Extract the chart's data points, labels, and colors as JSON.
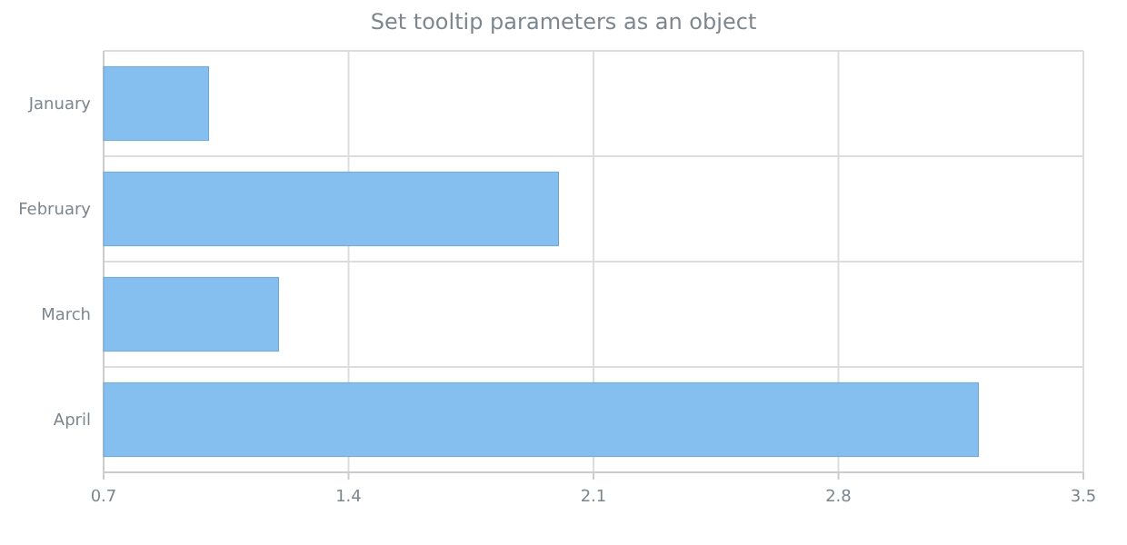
{
  "chart_data": {
    "type": "bar",
    "orientation": "horizontal",
    "title": "Set tooltip parameters as an object",
    "categories": [
      "January",
      "February",
      "March",
      "April"
    ],
    "values": [
      1.0,
      2.0,
      1.2,
      3.2
    ],
    "color": "#84bff0",
    "xlim": [
      0.7,
      3.5
    ],
    "xticks": [
      0.7,
      1.4,
      2.1,
      2.8,
      3.5
    ],
    "grid": true
  }
}
